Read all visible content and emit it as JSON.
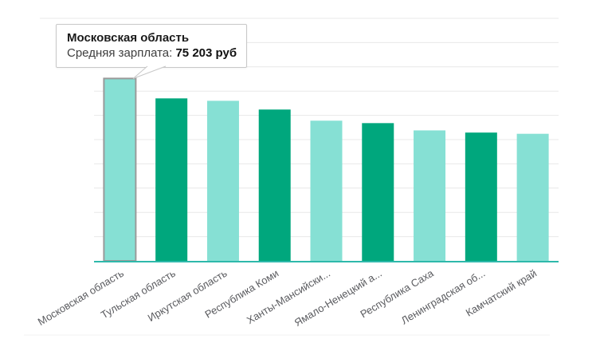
{
  "tooltip": {
    "region": "Московская область",
    "label": "Средняя зарплата: ",
    "value": "75 203 руб"
  },
  "chart_data": {
    "type": "bar",
    "title": "",
    "xlabel": "",
    "ylabel": "",
    "categories": [
      "Московская область",
      "Тульская область",
      "Иркутская область",
      "Республика Коми",
      "Ханты-Мансийски...",
      "Ямало-Ненецкий а...",
      "Республика Саха",
      "Ленинградская об...",
      "Камчатский край"
    ],
    "values": [
      75203,
      67000,
      66000,
      62400,
      57800,
      56800,
      53800,
      52900,
      52400
    ],
    "series_label": "Средняя зарплата",
    "unit": "руб",
    "ylim": [
      0,
      100000
    ],
    "gridline_step": 10000,
    "grid": true,
    "legend": false,
    "highlighted_index": 0,
    "colors": {
      "light_bar": "#86e0d4",
      "dark_bar": "#00a77d",
      "highlight_border": "#9a9a9a",
      "axis_line": "#2eb9ab",
      "gridline": "#e8e8e8",
      "separator": "#f2f2f2",
      "tick_label": "#595a5e"
    }
  }
}
